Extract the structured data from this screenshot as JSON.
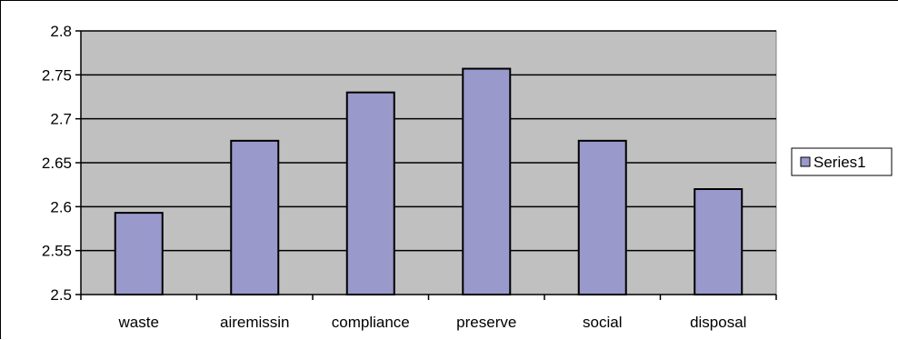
{
  "chart_data": {
    "type": "bar",
    "categories": [
      "waste",
      "airemissin",
      "compliance",
      "preserve",
      "social",
      "disposal"
    ],
    "series": [
      {
        "name": "Series1",
        "values": [
          2.593,
          2.675,
          2.73,
          2.757,
          2.675,
          2.62
        ],
        "color": "#9999cc"
      }
    ],
    "ylim": [
      2.5,
      2.8
    ],
    "yticks": [
      "2.5",
      "2.55",
      "2.6",
      "2.65",
      "2.7",
      "2.75",
      "2.8"
    ],
    "ytick_values": [
      2.5,
      2.55,
      2.6,
      2.65,
      2.7,
      2.75,
      2.8
    ],
    "grid": true,
    "plot_background": "#c0c0c0",
    "legend_position": "right"
  }
}
